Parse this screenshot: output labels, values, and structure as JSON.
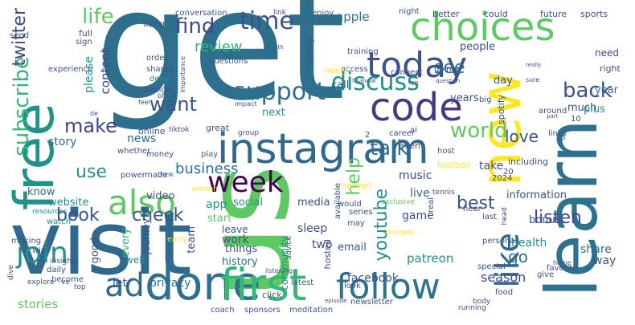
{
  "colors": {
    "background": "#ffffff",
    "palette": [
      "#440154",
      "#3b528b",
      "#21918c",
      "#5ec962",
      "#fde725",
      "#2c728e",
      "#31688e"
    ]
  },
  "words": [
    {
      "text": "get",
      "color": "#2e6f8e"
    },
    {
      "text": "us",
      "color": "#5ec962"
    },
    {
      "text": "visit",
      "color": "#31688e"
    },
    {
      "text": "learn",
      "color": "#2c728e"
    },
    {
      "text": "free",
      "color": "#21918c"
    },
    {
      "text": "new",
      "color": "#fde725"
    },
    {
      "text": "instagram",
      "color": "#31688e"
    },
    {
      "text": "choices",
      "color": "#5ec962"
    },
    {
      "text": "done",
      "color": "#2e6f8e"
    },
    {
      "text": "first",
      "color": "#35b779"
    },
    {
      "text": "code",
      "color": "#443983"
    },
    {
      "text": "today",
      "color": "#3b528b"
    },
    {
      "text": "follow",
      "color": "#2c728e"
    },
    {
      "text": "also",
      "color": "#5ec962"
    },
    {
      "text": "like",
      "color": "#31688e"
    },
    {
      "text": "join",
      "color": "#21918c"
    },
    {
      "text": "week",
      "color": "#440154"
    },
    {
      "text": "ad",
      "color": "#31688e"
    },
    {
      "text": "time",
      "color": "#3b528b"
    },
    {
      "text": "support",
      "color": "#2e6f8e"
    },
    {
      "text": "discuss",
      "color": "#21918c"
    },
    {
      "text": "find",
      "color": "#3e4989"
    },
    {
      "text": "life",
      "color": "#5ec962"
    },
    {
      "text": "subscribe",
      "color": "#35b779"
    },
    {
      "text": "twitter",
      "color": "#3e4989"
    },
    {
      "text": "want",
      "color": "#3b528b"
    },
    {
      "text": "talk",
      "color": "#2c728e"
    },
    {
      "text": "world",
      "color": "#5ec962"
    },
    {
      "text": "back",
      "color": "#3b528b"
    },
    {
      "text": "see",
      "color": "#2e6f8e"
    },
    {
      "text": "make",
      "color": "#3e4989"
    },
    {
      "text": "use",
      "color": "#21918c"
    },
    {
      "text": "book",
      "color": "#3b528b"
    },
    {
      "text": "check",
      "color": "#3b528b"
    },
    {
      "text": "business",
      "color": "#2c728e"
    },
    {
      "text": "help",
      "color": "#5ec962"
    },
    {
      "text": "youtube",
      "color": "#21918c"
    },
    {
      "text": "best",
      "color": "#3b528b"
    },
    {
      "text": "love",
      "color": "#3b528b"
    },
    {
      "text": "listen",
      "color": "#3e4989"
    },
    {
      "text": "go",
      "color": "#2e6f8e"
    },
    {
      "text": "review",
      "color": "#35b779"
    },
    {
      "text": "apple",
      "color": "#2c728e"
    },
    {
      "text": "people",
      "color": "#3b528b"
    },
    {
      "text": "content",
      "color": "#3e4989"
    },
    {
      "text": "please",
      "color": "#21918c"
    },
    {
      "text": "news",
      "color": "#2e6f8e"
    },
    {
      "text": "story",
      "color": "#31688e"
    },
    {
      "text": "media",
      "color": "#3b528b"
    },
    {
      "text": "music",
      "color": "#3b528b"
    },
    {
      "text": "season",
      "color": "#3e4989"
    },
    {
      "text": "facebook",
      "color": "#3b528b"
    },
    {
      "text": "patreon",
      "color": "#21918c"
    },
    {
      "text": "information",
      "color": "#3b528b"
    },
    {
      "text": "email",
      "color": "#3b528b"
    },
    {
      "text": "sleep",
      "color": "#3b528b"
    },
    {
      "text": "two",
      "color": "#3b528b"
    },
    {
      "text": "game",
      "color": "#3b528b"
    },
    {
      "text": "health",
      "color": "#21918c"
    },
    {
      "text": "share",
      "color": "#31688e"
    },
    {
      "text": "bonus",
      "color": "#3b528b"
    },
    {
      "text": "team",
      "color": "#3e4989"
    },
    {
      "text": "work",
      "color": "#3b528b"
    },
    {
      "text": "privacy",
      "color": "#2c728e"
    },
    {
      "text": "let",
      "color": "#3b528b"
    },
    {
      "text": "stories",
      "color": "#5ec962"
    },
    {
      "text": "live",
      "color": "#2e6f8e"
    },
    {
      "text": "take",
      "color": "#3b528b"
    },
    {
      "text": "day",
      "color": "#3b528b"
    },
    {
      "text": "years",
      "color": "#3b528b"
    },
    {
      "text": "much",
      "color": "#3b528b"
    },
    {
      "text": "year",
      "color": "#2e6f8e"
    },
    {
      "text": "plus",
      "color": "#21918c"
    },
    {
      "text": "need",
      "color": "#3e4989"
    },
    {
      "text": "call",
      "color": "#3b528b"
    },
    {
      "text": "next",
      "color": "#21918c"
    },
    {
      "text": "start",
      "color": "#5ec962"
    },
    {
      "text": "social",
      "color": "#21918c"
    },
    {
      "text": "app",
      "color": "#21918c"
    },
    {
      "text": "website",
      "color": "#21918c"
    },
    {
      "text": "know",
      "color": "#31688e"
    },
    {
      "text": "way",
      "color": "#3b528b"
    },
    {
      "text": "video",
      "color": "#3b528b"
    },
    {
      "text": "history",
      "color": "#2c728e"
    },
    {
      "text": "things",
      "color": "#3b528b"
    },
    {
      "text": "every",
      "color": "#35b779"
    },
    {
      "text": "journey",
      "color": "#3b528b"
    },
    {
      "text": "good",
      "color": "#3b528b"
    },
    {
      "text": "well",
      "color": "#21918c"
    },
    {
      "text": "leave",
      "color": "#3b528b"
    },
    {
      "text": "community",
      "color": "#21918c"
    },
    {
      "text": "hosted",
      "color": "#3b528b"
    },
    {
      "text": "conversation",
      "color": "#3b528b"
    },
    {
      "text": "link",
      "color": "#3b528b"
    },
    {
      "text": "enjoy",
      "color": "#3b528b"
    },
    {
      "text": "night",
      "color": "#3b528b"
    },
    {
      "text": "better",
      "color": "#3b528b"
    },
    {
      "text": "could",
      "color": "#3b528b"
    },
    {
      "text": "future",
      "color": "#3b528b"
    },
    {
      "text": "sports",
      "color": "#3b528b"
    },
    {
      "text": "using",
      "color": "#3b528b"
    },
    {
      "text": "full",
      "color": "#3b528b"
    },
    {
      "text": "send",
      "color": "#3b528b"
    },
    {
      "text": "sign",
      "color": "#3b528b"
    },
    {
      "text": "experience",
      "color": "#3b528b"
    },
    {
      "text": "order",
      "color": "#3b528b"
    },
    {
      "text": "shares",
      "color": "#3b528b"
    },
    {
      "text": "deep",
      "color": "#21918c"
    },
    {
      "text": "design",
      "color": "#3b528b"
    },
    {
      "text": "money",
      "color": "#3b528b"
    },
    {
      "text": "online",
      "color": "#3b528b"
    },
    {
      "text": "great",
      "color": "#3b528b"
    },
    {
      "text": "play",
      "color": "#2e6f8e"
    },
    {
      "text": "whether",
      "color": "#3b528b"
    },
    {
      "text": "power",
      "color": "#3b528b"
    },
    {
      "text": "resources",
      "color": "#21918c"
    },
    {
      "text": "watch",
      "color": "#21918c"
    },
    {
      "text": "making",
      "color": "#3b528b"
    },
    {
      "text": "win",
      "color": "#3b528b"
    },
    {
      "text": "daily",
      "color": "#3b528b"
    },
    {
      "text": "become",
      "color": "#3b528b"
    },
    {
      "text": "explore",
      "color": "#3b528b"
    },
    {
      "text": "vs",
      "color": "#3b528b"
    },
    {
      "text": "top",
      "color": "#3b528b"
    },
    {
      "text": "sponsors",
      "color": "#3b528b"
    },
    {
      "text": "meditation",
      "color": "#3b528b"
    },
    {
      "text": "coach",
      "color": "#3b528b"
    },
    {
      "text": "latest",
      "color": "#3b528b"
    },
    {
      "text": "newsletter",
      "color": "#3b528b"
    },
    {
      "text": "running",
      "color": "#3b528b"
    },
    {
      "text": "food",
      "color": "#3b528b"
    },
    {
      "text": "give",
      "color": "#3b528b"
    },
    {
      "text": "favorite",
      "color": "#3b528b"
    },
    {
      "text": "special",
      "color": "#3b528b"
    },
    {
      "text": "personal",
      "color": "#3b528b"
    },
    {
      "text": "last",
      "color": "#3b528b"
    },
    {
      "text": "hear",
      "color": "#3b528b"
    },
    {
      "text": "2024",
      "color": "#3b528b"
    },
    {
      "text": "20",
      "color": "#3b528b"
    },
    {
      "text": "including",
      "color": "#3b528b"
    },
    {
      "text": "around",
      "color": "#3b528b"
    },
    {
      "text": "even",
      "color": "#3b528b"
    },
    {
      "text": "career",
      "color": "#3b528b"
    },
    {
      "text": "tiktok",
      "color": "#3b528b"
    },
    {
      "text": "group",
      "color": "#3b528b"
    },
    {
      "text": "channel",
      "color": "#fde725"
    },
    {
      "text": "would",
      "color": "#3b528b"
    },
    {
      "text": "series",
      "color": "#3b528b"
    },
    {
      "text": "may",
      "color": "#3b528b"
    },
    {
      "text": "real",
      "color": "#3b528b"
    },
    {
      "text": "available",
      "color": "#3b528b"
    },
    {
      "text": "training",
      "color": "#3b528b"
    },
    {
      "text": "access",
      "color": "#3b528b"
    },
    {
      "text": "connect",
      "color": "#3b528b"
    },
    {
      "text": "going",
      "color": "#3b528b"
    },
    {
      "text": "family",
      "color": "#3b528b"
    },
    {
      "text": "questions",
      "color": "#3b528b"
    },
    {
      "text": "right",
      "color": "#3b528b"
    },
    {
      "text": "spotify",
      "color": "#3b528b"
    },
    {
      "text": "big",
      "color": "#3b528b"
    },
    {
      "text": "10",
      "color": "#3b528b"
    },
    {
      "text": "links",
      "color": "#3b528b"
    },
    {
      "text": "football",
      "color": "#fde725"
    },
    {
      "text": "click",
      "color": "#3b528b"
    },
    {
      "text": "look",
      "color": "#3b528b"
    },
    {
      "text": "2",
      "color": "#3b528b"
    },
    {
      "text": "5",
      "color": "#3b528b"
    },
    {
      "text": "ai",
      "color": "#3b528b"
    },
    {
      "text": "host",
      "color": "#3b528b"
    },
    {
      "text": "many",
      "color": "#fde725"
    },
    {
      "text": "early",
      "color": "#fde725"
    },
    {
      "text": "head",
      "color": "#3b528b"
    },
    {
      "text": "tennis",
      "color": "#3b528b"
    },
    {
      "text": "exclusive",
      "color": "#5ec962"
    },
    {
      "text": "insights",
      "color": "#3b528b"
    },
    {
      "text": "dive",
      "color": "#3b528b"
    },
    {
      "text": "listening",
      "color": "#3b528b"
    },
    {
      "text": "advice",
      "color": "#3b528b"
    },
    {
      "text": "women",
      "color": "#fde725"
    },
    {
      "text": "think",
      "color": "#3b528b"
    },
    {
      "text": "made",
      "color": "#3b528b"
    },
    {
      "text": "de",
      "color": "#3b528b"
    },
    {
      "text": "impact",
      "color": "#3b528b"
    },
    {
      "text": "feel",
      "color": "#3b528b"
    },
    {
      "text": "break",
      "color": "#3b528b"
    },
    {
      "text": "importance",
      "color": "#3b528b"
    },
    {
      "text": "month",
      "color": "#3b528b"
    },
    {
      "text": "financial",
      "color": "#3b528b"
    },
    {
      "text": "really",
      "color": "#3b528b"
    },
    {
      "text": "question",
      "color": "#3b528b"
    },
    {
      "text": "tips",
      "color": "#3b528b"
    },
    {
      "text": "sure",
      "color": "#3b528b"
    },
    {
      "text": "part",
      "color": "#3b528b"
    },
    {
      "text": "home",
      "color": "#3b528b"
    },
    {
      "text": "body",
      "color": "#3b528b"
    },
    {
      "text": "thoughts",
      "color": "#fde725"
    },
    {
      "text": "episode",
      "color": "#3b528b"
    },
    {
      "text": "games",
      "color": "#3b528b"
    }
  ]
}
